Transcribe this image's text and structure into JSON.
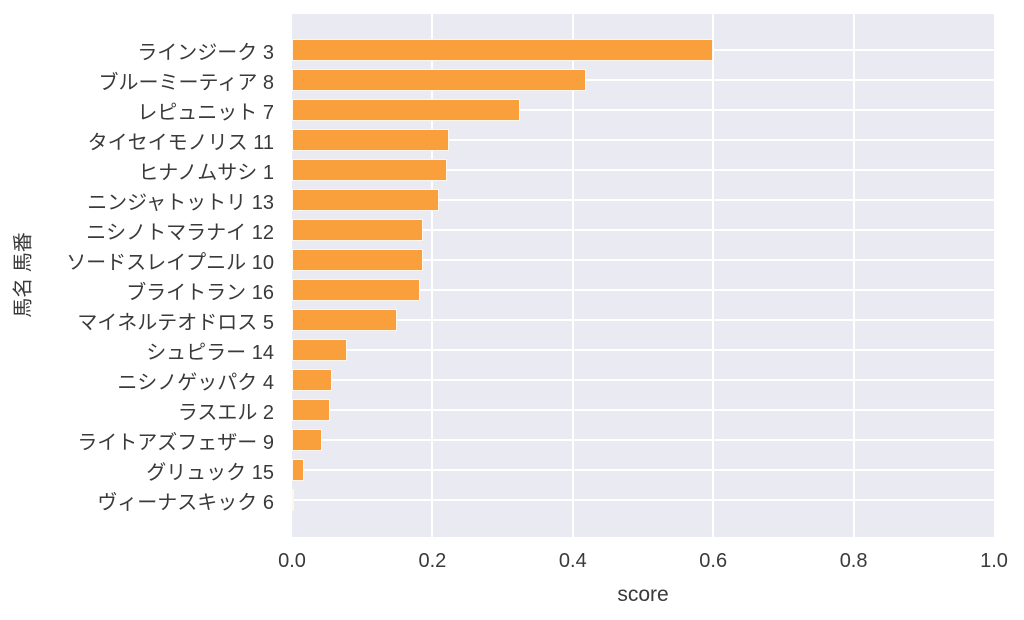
{
  "chart_data": {
    "type": "bar",
    "orientation": "horizontal",
    "title": "",
    "xlabel": "score",
    "ylabel": "馬名 馬番",
    "xlim": [
      0.0,
      1.0
    ],
    "x_ticks": [
      "0.0",
      "0.2",
      "0.4",
      "0.6",
      "0.8",
      "1.0"
    ],
    "grid": true,
    "legend": false,
    "bar_color": "#F9A03C",
    "plot_background": "#EAEAF2",
    "grid_color": "#FFFFFF",
    "text_color": "#3A3A3A",
    "categories": [
      "ラインジーク 3",
      "ブルーミーティア 8",
      "レピュニット 7",
      "タイセイモノリス 11",
      "ヒナノムサシ 1",
      "ニンジャトットリ 13",
      "ニシノトマラナイ 12",
      "ソードスレイプニル 10",
      "ブライトラン 16",
      "マイネルテオドロス 5",
      "シュピラー 14",
      "ニシノゲッパク 4",
      "ラスエル 2",
      "ライトアズフェザー 9",
      "グリュック 15",
      "ヴィーナスキック 6"
    ],
    "values": [
      0.6,
      0.419,
      0.325,
      0.223,
      0.221,
      0.209,
      0.187,
      0.186,
      0.182,
      0.15,
      0.078,
      0.057,
      0.054,
      0.043,
      0.017,
      0.003
    ]
  }
}
